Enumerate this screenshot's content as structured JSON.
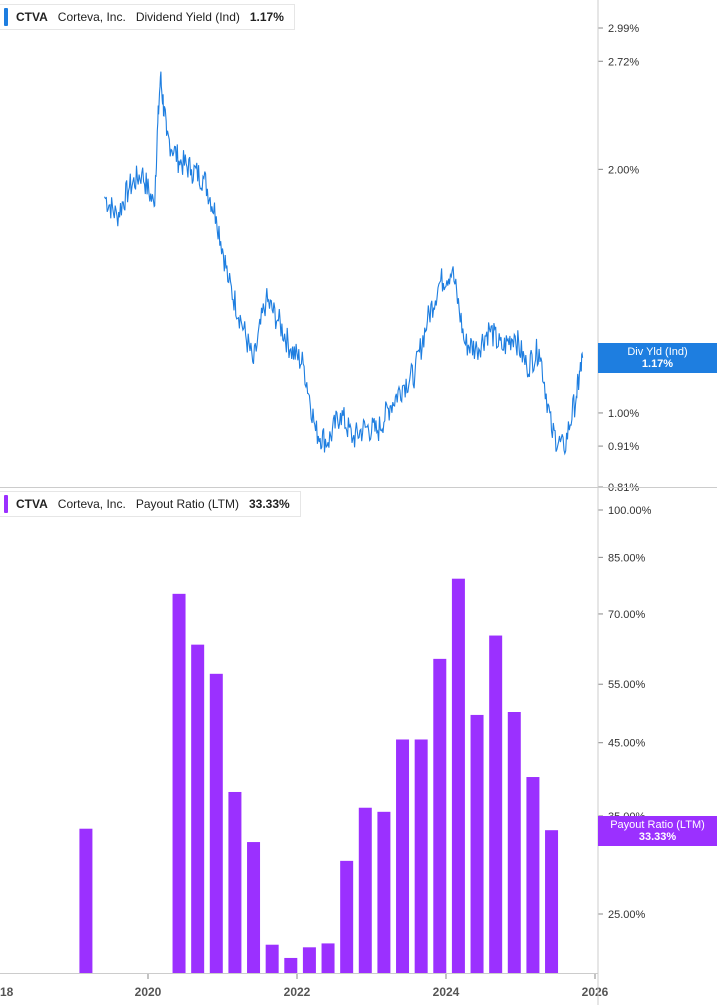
{
  "colors": {
    "yield": "#1e7ee0",
    "payout": "#9b30ff",
    "axis": "#cccccc",
    "tick_text": "#333333"
  },
  "top_panel": {
    "legend": {
      "ticker": "CTVA",
      "company": "Corteva, Inc.",
      "metric": "Dividend Yield (Ind)",
      "value": "1.17%"
    },
    "badge": {
      "label": "Div Yld (Ind)",
      "value": "1.17%"
    }
  },
  "bottom_panel": {
    "legend": {
      "ticker": "CTVA",
      "company": "Corteva, Inc.",
      "metric": "Payout Ratio (LTM)",
      "value": "33.33%"
    },
    "badge": {
      "label": "Payout Ratio (LTM)",
      "value": "33.33%"
    }
  },
  "chart_data": [
    {
      "type": "line",
      "title": "CTVA Corteva, Inc. Dividend Yield (Ind) 1.17%",
      "scale": "log",
      "y_ticks": [
        "2.99%",
        "2.72%",
        "2.00%",
        "1.00%",
        "0.91%",
        "0.81%"
      ],
      "y_tick_values": [
        2.99,
        2.72,
        2.0,
        1.0,
        0.91,
        0.81
      ],
      "ylim": [
        0.81,
        3.2
      ],
      "series": [
        {
          "name": "Dividend Yield (Ind)",
          "x": [
            "2019-06",
            "2019-08",
            "2019-10",
            "2019-12",
            "2020-02",
            "2020-03",
            "2020-04",
            "2020-06",
            "2020-08",
            "2020-10",
            "2020-12",
            "2021-02",
            "2021-04",
            "2021-06",
            "2021-08",
            "2021-10",
            "2021-12",
            "2022-02",
            "2022-04",
            "2022-06",
            "2022-08",
            "2022-10",
            "2022-12",
            "2023-02",
            "2023-04",
            "2023-06",
            "2023-08",
            "2023-10",
            "2023-12",
            "2024-02",
            "2024-04",
            "2024-06",
            "2024-08",
            "2024-10",
            "2024-12",
            "2025-02",
            "2025-04",
            "2025-06",
            "2025-08",
            "2025-10",
            "2025-11"
          ],
          "values": [
            1.85,
            1.75,
            1.9,
            1.98,
            1.8,
            2.6,
            2.2,
            2.05,
            2.0,
            1.95,
            1.75,
            1.45,
            1.3,
            1.15,
            1.38,
            1.3,
            1.2,
            1.15,
            0.95,
            0.92,
            1.0,
            0.93,
            0.96,
            0.95,
            1.02,
            1.08,
            1.12,
            1.3,
            1.45,
            1.5,
            1.22,
            1.2,
            1.27,
            1.2,
            1.25,
            1.14,
            1.2,
            0.95,
            0.9,
            1.05,
            1.17
          ]
        }
      ]
    },
    {
      "type": "bar",
      "title": "CTVA Corteva, Inc. Payout Ratio (LTM) 33.33%",
      "scale": "log",
      "y_ticks": [
        "100.00%",
        "85.00%",
        "70.00%",
        "55.00%",
        "45.00%",
        "35.00%",
        "25.00%"
      ],
      "y_tick_values": [
        100,
        85,
        70,
        55,
        45,
        35,
        25
      ],
      "ylim": [
        19,
        103
      ],
      "x_ticks": [
        "18",
        "2020",
        "2022",
        "2024",
        "2026"
      ],
      "series": [
        {
          "name": "Payout Ratio (LTM)",
          "x": [
            "2019-03",
            "2020-06",
            "2020-09",
            "2020-12",
            "2021-03",
            "2021-06",
            "2021-09",
            "2021-12",
            "2022-03",
            "2022-06",
            "2022-09",
            "2022-12",
            "2023-03",
            "2023-06",
            "2023-09",
            "2023-12",
            "2024-03",
            "2024-06",
            "2024-09",
            "2024-12",
            "2025-03",
            "2025-06"
          ],
          "values": [
            33.5,
            75,
            63,
            57,
            38,
            32,
            22.5,
            21.5,
            22.3,
            22.6,
            30,
            36,
            35.5,
            45.5,
            45.5,
            60,
            79,
            49.5,
            65,
            50,
            40,
            33.33
          ]
        }
      ]
    }
  ]
}
